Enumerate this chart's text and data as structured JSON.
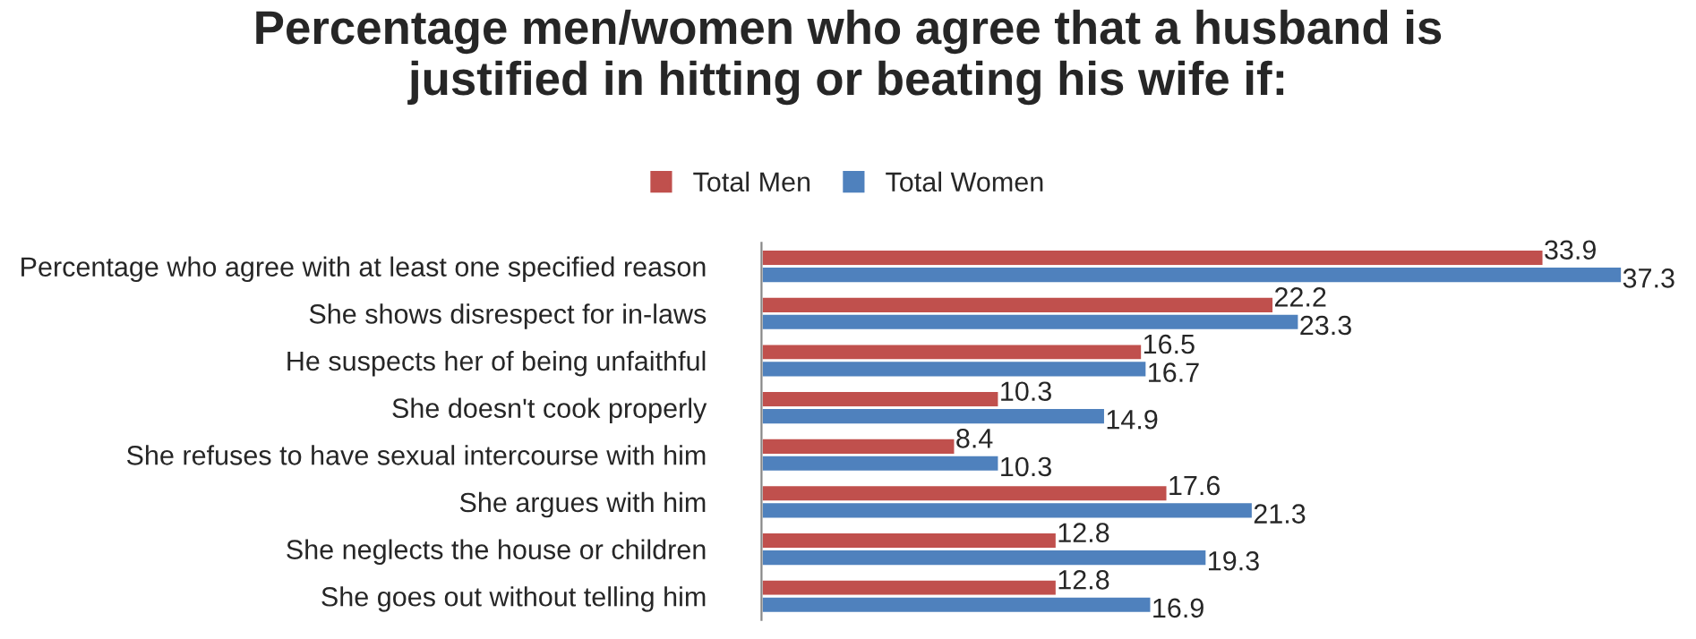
{
  "chart_data": {
    "type": "bar",
    "orientation": "horizontal",
    "title": "Percentage men/women who agree that a husband is\njustified in hitting or beating his wife if:",
    "categories": [
      "Percentage who agree with at least one specified reason",
      "She shows disrespect for in-laws",
      "He suspects her of being unfaithful",
      "She doesn't cook properly",
      "She refuses to have sexual intercourse with him",
      "She argues with him",
      "She neglects the house or children",
      "She goes out without telling him"
    ],
    "series": [
      {
        "name": "Total Men",
        "color": "#c0504d",
        "values": [
          33.9,
          22.2,
          16.5,
          10.3,
          8.4,
          17.6,
          12.8,
          12.8
        ]
      },
      {
        "name": "Total Women",
        "color": "#4f81bd",
        "values": [
          37.3,
          23.3,
          16.7,
          14.9,
          10.3,
          21.3,
          19.3,
          16.9
        ]
      }
    ],
    "data_labels": true,
    "legend": "top",
    "grid": false
  }
}
